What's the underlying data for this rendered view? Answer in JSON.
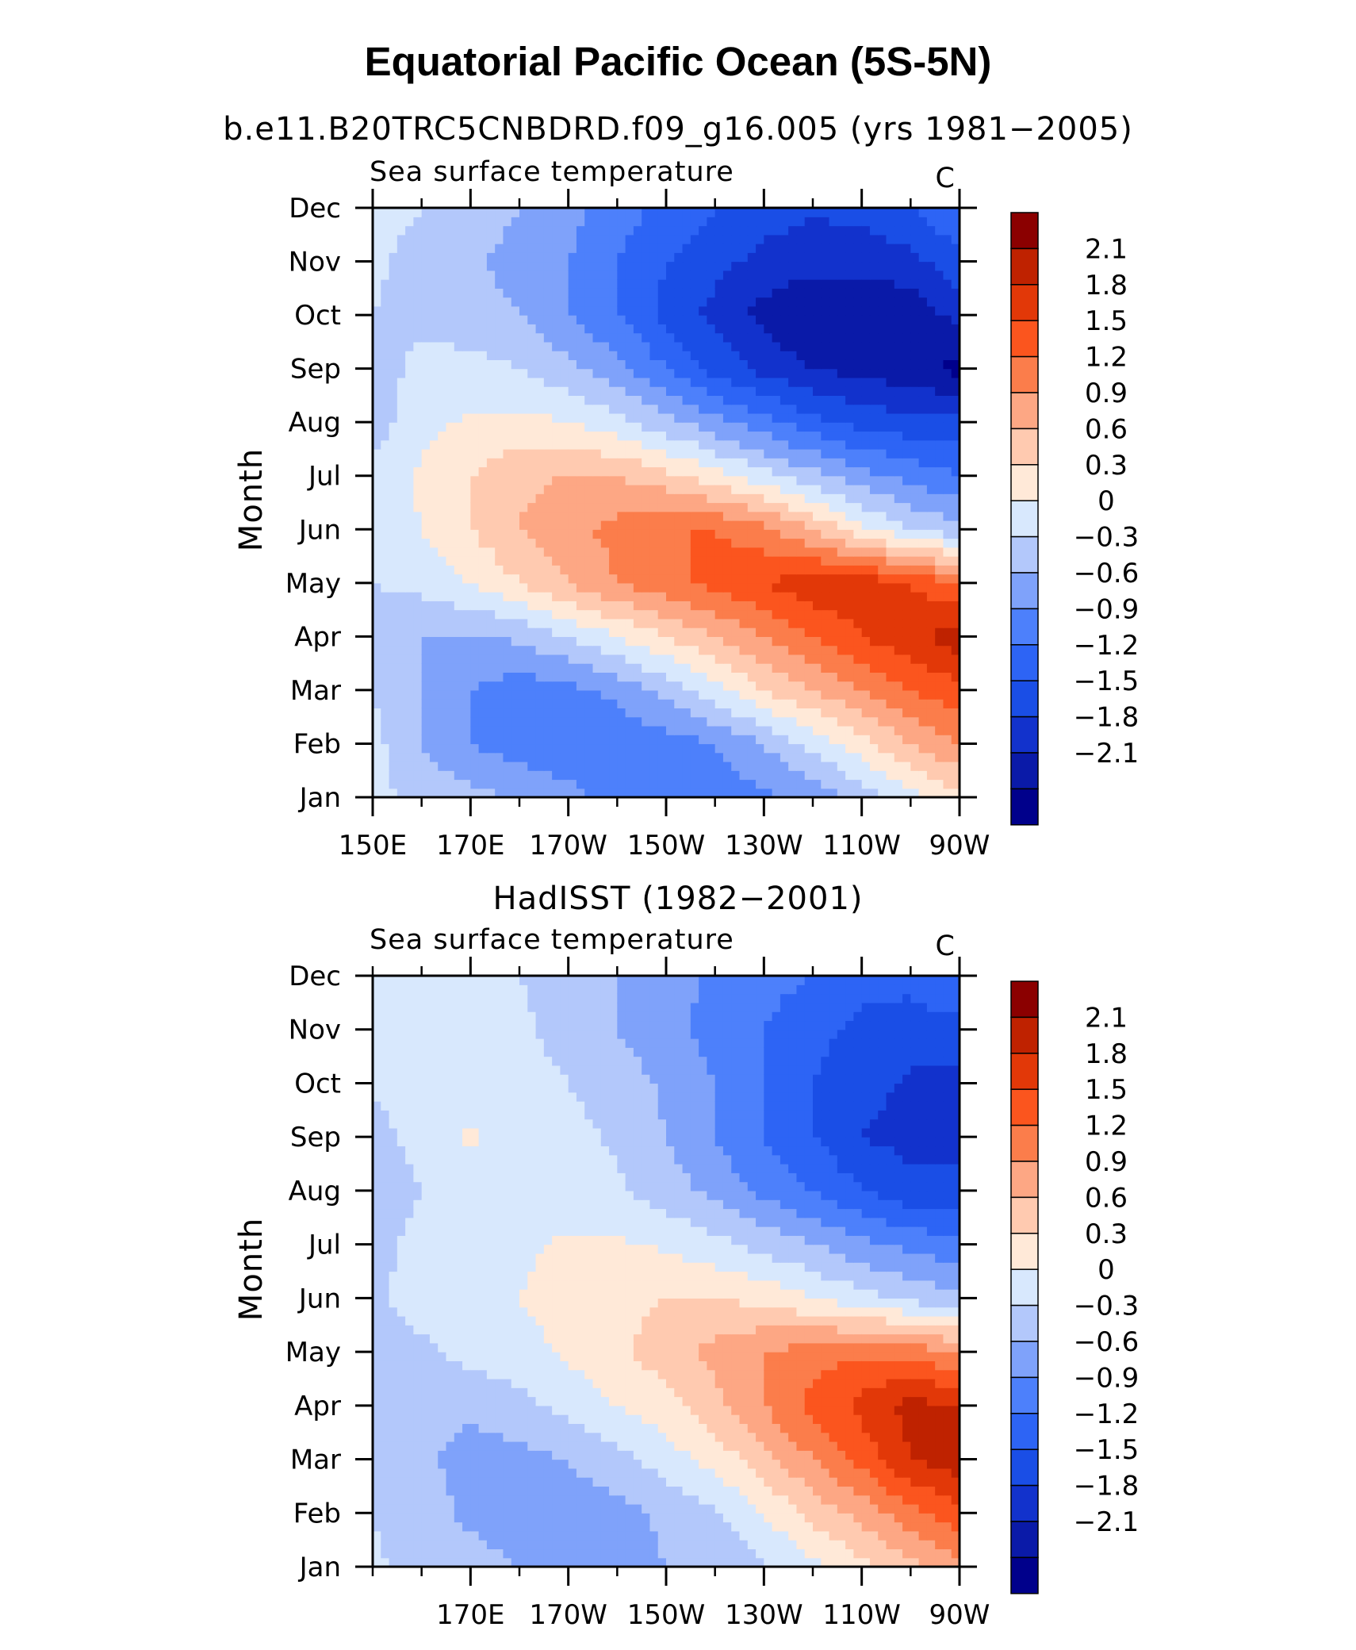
{
  "main_title": "Equatorial Pacific Ocean (5S-5N)",
  "colors": {
    "levels_palette": [
      "#00008b",
      "#0a1aa8",
      "#1232cc",
      "#1a4ee6",
      "#2d64f5",
      "#4d80fb",
      "#7fa2fa",
      "#b3c8fb",
      "#d8e8fd",
      "#ffe9d8",
      "#ffcab0",
      "#fda784",
      "#fb7d4b",
      "#fb551e",
      "#e23808",
      "#bf2200",
      "#8b0000"
    ]
  },
  "chart_data": [
    {
      "type": "heatmap",
      "title": "b.e11.B20TRC5CNBDRD.f09_g16.005 (yrs 1981−2005)",
      "left_string": "Sea surface temperature",
      "right_string": "C",
      "xlabel": "",
      "ylabel": "Month",
      "x_tick_labels": [
        "150E",
        "170E",
        "170W",
        "150W",
        "130W",
        "110W",
        "90W"
      ],
      "y_tick_labels": [
        "Jan",
        "Feb",
        "Mar",
        "Apr",
        "May",
        "Jun",
        "Jul",
        "Aug",
        "Sep",
        "Oct",
        "Nov",
        "Dec"
      ],
      "x_range_deg_east": [
        150,
        270
      ],
      "x_points_deg_east": [
        150,
        160,
        170,
        180,
        190,
        200,
        210,
        220,
        230,
        240,
        250,
        260,
        270
      ],
      "colorbar_labels": [
        "2.1",
        "1.8",
        "1.5",
        "1.2",
        "0.9",
        "0.6",
        "0.3",
        "0",
        "−0.3",
        "−0.6",
        "−0.9",
        "−1.2",
        "−1.5",
        "−1.8",
        "−2.1"
      ],
      "values": [
        [
          0.1,
          -0.1,
          -0.2,
          -0.35,
          -0.5,
          -0.7,
          -0.8,
          -0.8,
          -0.65,
          -0.5,
          -0.2,
          0.2,
          0.5
        ],
        [
          0.1,
          -0.3,
          -0.6,
          -0.75,
          -0.85,
          -0.85,
          -0.75,
          -0.6,
          -0.3,
          0.1,
          0.5,
          0.9,
          1.2
        ],
        [
          0.0,
          -0.3,
          -0.6,
          -0.75,
          -0.7,
          -0.5,
          -0.2,
          0.2,
          0.6,
          0.9,
          1.2,
          1.5,
          1.7
        ],
        [
          -0.1,
          -0.3,
          -0.35,
          -0.25,
          0.0,
          0.3,
          0.6,
          0.9,
          1.2,
          1.5,
          1.8,
          2.0,
          2.3
        ],
        [
          0.0,
          0.1,
          0.3,
          0.6,
          0.9,
          1.2,
          1.4,
          1.6,
          1.8,
          2.0,
          2.0,
          1.8,
          1.5
        ],
        [
          0.1,
          0.3,
          0.6,
          0.9,
          1.1,
          1.3,
          1.5,
          1.5,
          1.3,
          0.9,
          0.4,
          0.0,
          -0.2
        ],
        [
          0.1,
          0.35,
          0.6,
          0.85,
          0.9,
          0.9,
          0.7,
          0.4,
          0.1,
          -0.2,
          -0.5,
          -0.7,
          -0.9
        ],
        [
          -0.15,
          0.2,
          0.35,
          0.4,
          0.3,
          0.1,
          -0.2,
          -0.5,
          -0.8,
          -1.1,
          -1.3,
          -1.4,
          -1.4
        ],
        [
          -0.25,
          0.15,
          0.1,
          0.0,
          -0.2,
          -0.5,
          -0.9,
          -1.3,
          -1.6,
          -1.8,
          -1.9,
          -2.0,
          -2.2
        ],
        [
          0.0,
          -0.1,
          -0.2,
          -0.3,
          -0.6,
          -0.9,
          -1.3,
          -1.6,
          -1.9,
          -2.1,
          -2.1,
          -2.0,
          -1.7
        ],
        [
          0.05,
          -0.1,
          -0.25,
          -0.4,
          -0.6,
          -0.9,
          -1.2,
          -1.4,
          -1.6,
          -1.7,
          -1.7,
          -1.6,
          -1.3
        ],
        [
          0.1,
          0.0,
          -0.15,
          -0.3,
          -0.5,
          -0.75,
          -1.0,
          -1.2,
          -1.35,
          -1.45,
          -1.4,
          -1.2,
          -0.9
        ]
      ]
    },
    {
      "type": "heatmap",
      "title": "HadISST (1982−2001)",
      "left_string": "Sea surface temperature",
      "right_string": "C",
      "xlabel": "",
      "ylabel": "Month",
      "x_tick_labels": [
        "170E",
        "170W",
        "150W",
        "130W",
        "110W",
        "90W"
      ],
      "y_tick_labels": [
        "Jan",
        "Feb",
        "Mar",
        "Apr",
        "May",
        "Jun",
        "Jul",
        "Aug",
        "Sep",
        "Oct",
        "Nov",
        "Dec"
      ],
      "x_range_deg_east": [
        150,
        270
      ],
      "x_points_deg_east": [
        150,
        160,
        170,
        180,
        190,
        200,
        210,
        220,
        230,
        240,
        250,
        260,
        270
      ],
      "colorbar_labels": [
        "2.1",
        "1.8",
        "1.5",
        "1.2",
        "0.9",
        "0.6",
        "0.3",
        "0",
        "−0.3",
        "−0.6",
        "−0.9",
        "−1.2",
        "−1.5",
        "−1.8",
        "−2.1"
      ],
      "values": [
        [
          0.05,
          -0.1,
          -0.2,
          -0.3,
          -0.35,
          -0.4,
          -0.3,
          -0.2,
          -0.05,
          0.2,
          0.5,
          0.8,
          1.1
        ],
        [
          0.0,
          -0.2,
          -0.35,
          -0.45,
          -0.45,
          -0.4,
          -0.25,
          -0.05,
          0.3,
          0.7,
          1.0,
          1.4,
          1.7
        ],
        [
          -0.05,
          -0.25,
          -0.4,
          -0.4,
          -0.3,
          -0.1,
          0.15,
          0.4,
          0.8,
          1.2,
          1.6,
          2.1,
          2.3
        ],
        [
          -0.1,
          -0.2,
          -0.25,
          -0.1,
          0.1,
          0.3,
          0.5,
          0.8,
          1.2,
          1.6,
          1.9,
          2.2,
          2.1
        ],
        [
          -0.1,
          -0.05,
          0.1,
          0.2,
          0.35,
          0.55,
          0.75,
          1.0,
          1.2,
          1.35,
          1.45,
          1.4,
          1.2
        ],
        [
          -0.05,
          0.1,
          0.2,
          0.3,
          0.4,
          0.5,
          0.6,
          0.6,
          0.5,
          0.3,
          0.1,
          -0.1,
          -0.2
        ],
        [
          -0.1,
          0.1,
          0.15,
          0.25,
          0.35,
          0.35,
          0.25,
          0.1,
          -0.1,
          -0.3,
          -0.5,
          -0.7,
          -0.8
        ],
        [
          -0.15,
          0.0,
          0.1,
          0.15,
          0.15,
          0.05,
          -0.15,
          -0.4,
          -0.7,
          -0.9,
          -1.2,
          -1.4,
          -1.4
        ],
        [
          -0.1,
          0.1,
          0.35,
          0.15,
          0.1,
          -0.05,
          -0.3,
          -0.6,
          -0.9,
          -1.2,
          -1.5,
          -1.6,
          -1.6
        ],
        [
          0.05,
          0.1,
          0.15,
          0.1,
          0.0,
          -0.15,
          -0.35,
          -0.6,
          -0.9,
          -1.2,
          -1.4,
          -1.55,
          -1.6
        ],
        [
          0.1,
          0.1,
          0.1,
          0.05,
          -0.1,
          -0.3,
          -0.5,
          -0.7,
          -0.9,
          -1.1,
          -1.3,
          -1.35,
          -1.3
        ],
        [
          0.1,
          0.1,
          0.05,
          0.0,
          -0.1,
          -0.3,
          -0.5,
          -0.65,
          -0.8,
          -0.9,
          -1.1,
          -1.1,
          -0.9
        ]
      ]
    }
  ]
}
